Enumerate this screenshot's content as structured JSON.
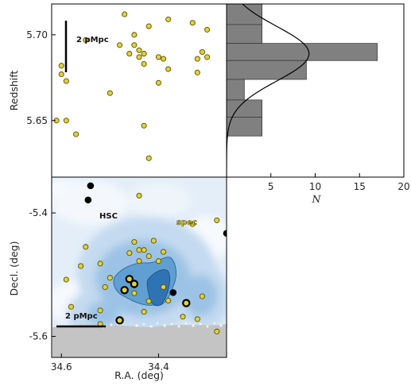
{
  "chart_data": [
    {
      "type": "scatter",
      "panel": "redshift-vs-ra",
      "ylabel": "Redshift",
      "xlim": [
        34.62,
        34.26
      ],
      "ylim": [
        5.617,
        5.718
      ],
      "yticks": [
        "5.70",
        "5.65"
      ],
      "ytick_values": [
        5.7,
        5.65
      ],
      "scale_bar_label": "2 pMpc",
      "points": [
        {
          "ra": 34.47,
          "z": 5.712
        },
        {
          "ra": 34.38,
          "z": 5.709
        },
        {
          "ra": 34.33,
          "z": 5.707
        },
        {
          "ra": 34.42,
          "z": 5.705
        },
        {
          "ra": 34.3,
          "z": 5.703
        },
        {
          "ra": 34.45,
          "z": 5.7
        },
        {
          "ra": 34.55,
          "z": 5.697
        },
        {
          "ra": 34.48,
          "z": 5.694
        },
        {
          "ra": 34.45,
          "z": 5.694
        },
        {
          "ra": 34.44,
          "z": 5.691
        },
        {
          "ra": 34.43,
          "z": 5.689
        },
        {
          "ra": 34.46,
          "z": 5.689
        },
        {
          "ra": 34.44,
          "z": 5.687
        },
        {
          "ra": 34.4,
          "z": 5.687
        },
        {
          "ra": 34.39,
          "z": 5.686
        },
        {
          "ra": 34.32,
          "z": 5.686
        },
        {
          "ra": 34.3,
          "z": 5.687
        },
        {
          "ra": 34.31,
          "z": 5.69
        },
        {
          "ra": 34.43,
          "z": 5.683
        },
        {
          "ra": 34.6,
          "z": 5.682
        },
        {
          "ra": 34.38,
          "z": 5.68
        },
        {
          "ra": 34.32,
          "z": 5.678
        },
        {
          "ra": 34.6,
          "z": 5.677
        },
        {
          "ra": 34.59,
          "z": 5.673
        },
        {
          "ra": 34.4,
          "z": 5.672
        },
        {
          "ra": 34.5,
          "z": 5.666
        },
        {
          "ra": 34.61,
          "z": 5.65
        },
        {
          "ra": 34.59,
          "z": 5.65
        },
        {
          "ra": 34.43,
          "z": 5.647
        },
        {
          "ra": 34.57,
          "z": 5.642
        },
        {
          "ra": 34.42,
          "z": 5.628
        }
      ]
    },
    {
      "type": "bar",
      "panel": "redshift-histogram",
      "orientation": "horizontal",
      "xlabel": "N",
      "xticks": [
        "5",
        "10",
        "15",
        "20"
      ],
      "tick_values": [
        5,
        10,
        15,
        20
      ],
      "xlim": [
        0,
        20
      ],
      "bins": [
        {
          "z_low": 5.706,
          "z_high": 5.718,
          "count": 4
        },
        {
          "z_low": 5.695,
          "z_high": 5.706,
          "count": 4
        },
        {
          "z_low": 5.685,
          "z_high": 5.695,
          "count": 17
        },
        {
          "z_low": 5.674,
          "z_high": 5.685,
          "count": 9
        },
        {
          "z_low": 5.662,
          "z_high": 5.674,
          "count": 2
        },
        {
          "z_low": 5.652,
          "z_high": 5.662,
          "count": 4
        },
        {
          "z_low": 5.641,
          "z_high": 5.652,
          "count": 4
        },
        {
          "z_low": 5.63,
          "z_high": 5.641,
          "count": 0
        },
        {
          "z_low": 5.617,
          "z_high": 5.63,
          "count": 0
        }
      ],
      "gaussian_curve": {
        "mean": 5.689,
        "sigma": 0.016,
        "peak_count": 9.3
      }
    },
    {
      "type": "scatter",
      "panel": "sky-map",
      "xlabel": "R.A. (deg)",
      "ylabel": "Decl. (deg)",
      "xlim": [
        34.62,
        34.26
      ],
      "ylim": [
        -5.634,
        -5.342
      ],
      "xticks": [
        "34.6",
        "34.4"
      ],
      "xtick_values": [
        34.6,
        34.4
      ],
      "yticks": [
        "-5.4",
        "-5.6"
      ],
      "ytick_values": [
        -5.4,
        -5.6
      ],
      "legend": [
        "HSC",
        "spec"
      ],
      "scale_bar_label": "2 pMpc",
      "hsc_points": [
        {
          "ra": 34.54,
          "dec": -5.356
        },
        {
          "ra": 34.545,
          "dec": -5.379
        },
        {
          "ra": 34.37,
          "dec": -5.529
        },
        {
          "ra": 34.26,
          "dec": -5.433
        }
      ],
      "spec_points_ringed": [
        {
          "ra": 34.46,
          "dec": -5.507
        },
        {
          "ra": 34.45,
          "dec": -5.515
        },
        {
          "ra": 34.48,
          "dec": -5.574
        },
        {
          "ra": 34.47,
          "dec": -5.525
        },
        {
          "ra": 34.343,
          "dec": -5.546
        }
      ],
      "spec_points": [
        {
          "ra": 34.44,
          "dec": -5.372
        },
        {
          "ra": 34.33,
          "dec": -5.418
        },
        {
          "ra": 34.28,
          "dec": -5.412
        },
        {
          "ra": 34.45,
          "dec": -5.447
        },
        {
          "ra": 34.41,
          "dec": -5.445
        },
        {
          "ra": 34.44,
          "dec": -5.46
        },
        {
          "ra": 34.43,
          "dec": -5.46
        },
        {
          "ra": 34.39,
          "dec": -5.463
        },
        {
          "ra": 34.46,
          "dec": -5.465
        },
        {
          "ra": 34.42,
          "dec": -5.47
        },
        {
          "ra": 34.44,
          "dec": -5.478
        },
        {
          "ra": 34.4,
          "dec": -5.478
        },
        {
          "ra": 34.52,
          "dec": -5.482
        },
        {
          "ra": 34.5,
          "dec": -5.505
        },
        {
          "ra": 34.51,
          "dec": -5.52
        },
        {
          "ra": 34.39,
          "dec": -5.52
        },
        {
          "ra": 34.45,
          "dec": -5.53
        },
        {
          "ra": 34.42,
          "dec": -5.543
        },
        {
          "ra": 34.38,
          "dec": -5.542
        },
        {
          "ra": 34.43,
          "dec": -5.56
        },
        {
          "ra": 34.35,
          "dec": -5.568
        },
        {
          "ra": 34.32,
          "dec": -5.572
        },
        {
          "ra": 34.52,
          "dec": -5.58
        },
        {
          "ra": 34.28,
          "dec": -5.592
        },
        {
          "ra": 34.58,
          "dec": -5.552
        },
        {
          "ra": 34.52,
          "dec": -5.558
        },
        {
          "ra": 34.59,
          "dec": -5.508
        },
        {
          "ra": 34.55,
          "dec": -5.455
        },
        {
          "ra": 34.56,
          "dec": -5.486
        },
        {
          "ra": 34.31,
          "dec": -5.535
        }
      ]
    }
  ],
  "colors": {
    "point_fill": "#e0d040",
    "point_edge": "#5a5200",
    "histogram_bar": "#808080",
    "density_light": "#e3eef9",
    "density_mid": "#c4daf0",
    "density_mid2": "#9cc3e5",
    "density_dark": "#5f9fd2",
    "density_darkest": "#2e74b5",
    "masked_region": "#c4c4c4"
  }
}
